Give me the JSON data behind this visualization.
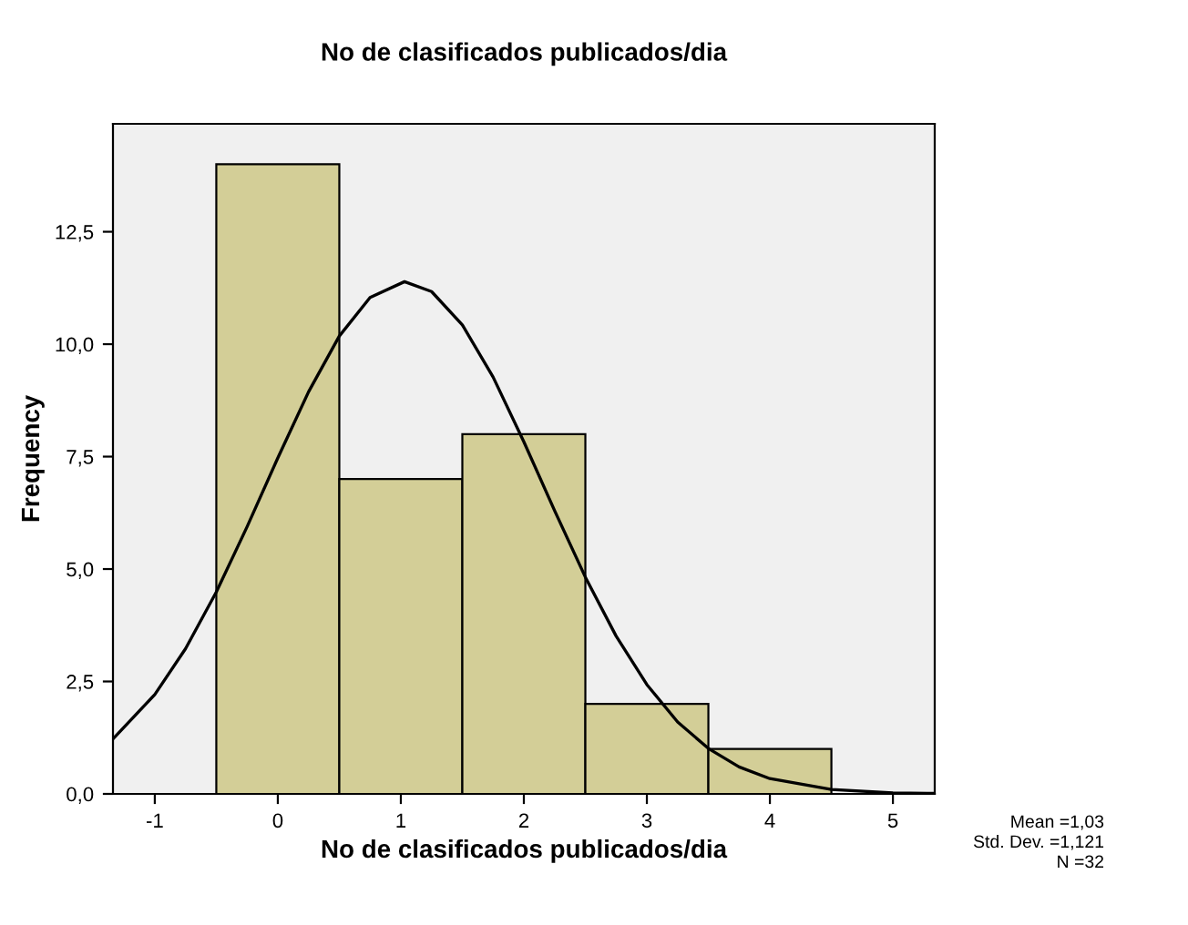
{
  "chart_data": {
    "type": "histogram",
    "title": "No de clasificados publicados/dia",
    "xlabel": "No de clasificados publicados/dia",
    "ylabel": "Frequency",
    "bins": [
      -0.5,
      0.5,
      1.5,
      2.5,
      3.5,
      4.5
    ],
    "values": [
      14,
      7,
      8,
      2,
      1
    ],
    "color": "#d3ce97",
    "series": [
      {
        "type": "line",
        "color": "#000000",
        "x": [
          -1.34,
          -1.0,
          -0.75,
          -0.5,
          -0.25,
          0,
          0.25,
          0.5,
          0.75,
          1.03,
          1.25,
          1.5,
          1.75,
          2.0,
          2.25,
          2.5,
          2.75,
          3.0,
          3.25,
          3.5,
          3.75,
          4.0,
          4.5,
          5.0,
          5.34
        ],
        "values": [
          1.22,
          2.21,
          3.23,
          4.49,
          5.94,
          7.47,
          8.94,
          10.18,
          11.04,
          11.39,
          11.17,
          10.43,
          9.27,
          7.83,
          6.3,
          4.82,
          3.51,
          2.43,
          1.6,
          1.01,
          0.6,
          0.34,
          0.1,
          0.02,
          0.01
        ]
      }
    ],
    "xlim": [
      -1.34,
      5.34
    ],
    "ylim": [
      0,
      14.9
    ],
    "xticks": [
      -1,
      0,
      1,
      2,
      3,
      4,
      5
    ],
    "yticks": [
      {
        "value": 0,
        "label": "0,0"
      },
      {
        "value": 2.5,
        "label": "2,5"
      },
      {
        "value": 5,
        "label": "5,0"
      },
      {
        "value": 7.5,
        "label": "7,5"
      },
      {
        "value": 10,
        "label": "10,0"
      },
      {
        "value": 12.5,
        "label": "12,5"
      }
    ],
    "annotations": [
      "Mean =1,03",
      "Std. Dev. =1,121",
      "N =32"
    ]
  }
}
